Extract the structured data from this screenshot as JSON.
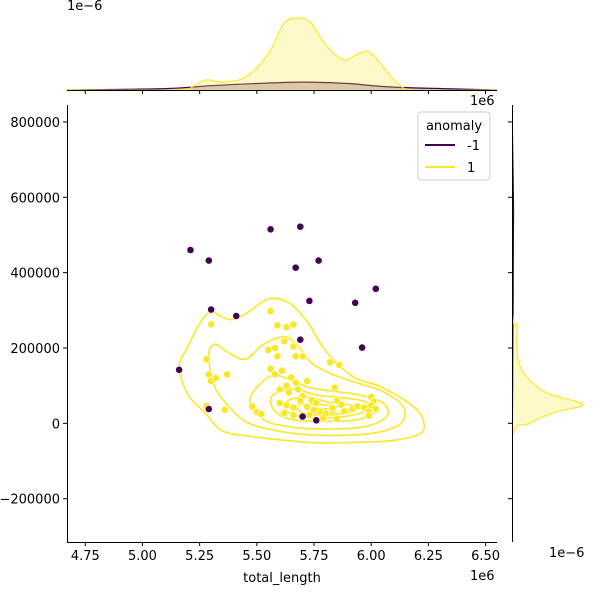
{
  "chart_data": {
    "type": "scatter",
    "xlabel": "total_length",
    "ylabel": "",
    "x_offset_label": "1e6",
    "top_marginal_offset_label": "1e−6",
    "top_marginal_corner_label": "1e6",
    "right_marginal_offset_label": "1e−6",
    "xlim": [
      4.67,
      6.55
    ],
    "ylim": [
      -315000,
      845000
    ],
    "x_ticks": [
      4.75,
      5.0,
      5.25,
      5.5,
      5.75,
      6.0,
      6.25,
      6.5
    ],
    "x_tick_labels": [
      "4.75",
      "5.00",
      "5.25",
      "5.50",
      "5.75",
      "6.00",
      "6.25",
      "6.50"
    ],
    "y_ticks": [
      -200000,
      0,
      200000,
      400000,
      600000,
      800000
    ],
    "y_tick_labels": [
      "−200000",
      "0",
      "200000",
      "400000",
      "600000",
      "800000"
    ],
    "grid": false,
    "legend": {
      "title": "anomaly",
      "placement": "top-right",
      "entries": [
        {
          "label": "-1",
          "color": "#440154"
        },
        {
          "label": "1",
          "color": "#fde725"
        }
      ]
    },
    "series": [
      {
        "name": "-1",
        "color": "#440154",
        "points": [
          [
            5.21,
            460000
          ],
          [
            5.29,
            432000
          ],
          [
            5.3,
            302000
          ],
          [
            5.29,
            38000
          ],
          [
            5.16,
            142000
          ],
          [
            5.41,
            285000
          ],
          [
            5.56,
            515000
          ],
          [
            5.69,
            522000
          ],
          [
            5.67,
            413000
          ],
          [
            5.77,
            432000
          ],
          [
            5.73,
            325000
          ],
          [
            5.69,
            222000
          ],
          [
            5.93,
            320000
          ],
          [
            6.02,
            357000
          ],
          [
            5.96,
            201000
          ],
          [
            5.76,
            8000
          ],
          [
            5.7,
            18000
          ]
        ]
      },
      {
        "name": "1",
        "color": "#fde725",
        "points": [
          [
            5.3,
            263000
          ],
          [
            5.28,
            170000
          ],
          [
            5.29,
            130000
          ],
          [
            5.3,
            112000
          ],
          [
            5.32,
            120000
          ],
          [
            5.37,
            130000
          ],
          [
            5.28,
            46000
          ],
          [
            5.36,
            36000
          ],
          [
            5.48,
            45000
          ],
          [
            5.5,
            30000
          ],
          [
            5.52,
            25000
          ],
          [
            5.56,
            298000
          ],
          [
            5.59,
            260000
          ],
          [
            5.63,
            255000
          ],
          [
            5.66,
            262000
          ],
          [
            5.62,
            218000
          ],
          [
            5.66,
            204000
          ],
          [
            5.55,
            195000
          ],
          [
            5.58,
            200000
          ],
          [
            5.59,
            178000
          ],
          [
            5.67,
            178000
          ],
          [
            5.7,
            178000
          ],
          [
            5.56,
            145000
          ],
          [
            5.58,
            130000
          ],
          [
            5.61,
            140000
          ],
          [
            5.65,
            122000
          ],
          [
            5.67,
            108000
          ],
          [
            5.63,
            100000
          ],
          [
            5.6,
            90000
          ],
          [
            5.64,
            82000
          ],
          [
            5.68,
            90000
          ],
          [
            5.72,
            112000
          ],
          [
            5.7,
            72000
          ],
          [
            5.74,
            62000
          ],
          [
            5.76,
            54000
          ],
          [
            5.72,
            44000
          ],
          [
            5.75,
            36000
          ],
          [
            5.78,
            30000
          ],
          [
            5.8,
            26000
          ],
          [
            5.6,
            54000
          ],
          [
            5.63,
            48000
          ],
          [
            5.66,
            42000
          ],
          [
            5.62,
            28000
          ],
          [
            5.66,
            22000
          ],
          [
            5.82,
            162000
          ],
          [
            5.86,
            155000
          ],
          [
            5.84,
            95000
          ],
          [
            5.85,
            60000
          ],
          [
            5.87,
            50000
          ],
          [
            5.83,
            40000
          ],
          [
            5.88,
            32000
          ],
          [
            5.92,
            38000
          ],
          [
            5.94,
            45000
          ],
          [
            5.97,
            42000
          ],
          [
            5.99,
            32000
          ],
          [
            6.0,
            70000
          ],
          [
            6.01,
            58000
          ],
          [
            6.0,
            48000
          ],
          [
            6.02,
            38000
          ],
          [
            5.99,
            20000
          ],
          [
            5.85,
            12000
          ],
          [
            5.79,
            14000
          ],
          [
            5.73,
            22000
          ],
          [
            5.69,
            60000
          ]
        ]
      }
    ],
    "top_marginal": {
      "type": "area",
      "series": [
        {
          "name": "-1",
          "color": "#440154",
          "x": [
            4.67,
            5.1,
            5.3,
            5.5,
            5.7,
            5.9,
            6.1,
            6.55
          ],
          "density": [
            0.0,
            0.02,
            0.06,
            0.09,
            0.11,
            0.09,
            0.04,
            0.0
          ]
        },
        {
          "name": "1",
          "color": "#fde725",
          "x": [
            4.67,
            5.15,
            5.22,
            5.28,
            5.35,
            5.45,
            5.55,
            5.62,
            5.69,
            5.74,
            5.8,
            5.88,
            5.94,
            5.99,
            6.04,
            6.12,
            6.2,
            6.55
          ],
          "density": [
            0.0,
            0.0,
            0.05,
            0.14,
            0.11,
            0.18,
            0.5,
            0.93,
            1.0,
            0.92,
            0.63,
            0.42,
            0.5,
            0.53,
            0.37,
            0.08,
            0.0,
            0.0
          ]
        }
      ]
    },
    "right_marginal": {
      "type": "area",
      "series": [
        {
          "name": "-1",
          "color": "#440154",
          "y": [
            -315000,
            -100000,
            100000,
            300000,
            500000,
            600000,
            845000
          ],
          "density": [
            0.0,
            0.0,
            0.01,
            0.015,
            0.02,
            0.02,
            0.0
          ]
        },
        {
          "name": "1",
          "color": "#fde725",
          "y": [
            -315000,
            -40000,
            0,
            30000,
            50000,
            80000,
            120000,
            160000,
            200000,
            260000,
            320000,
            845000
          ],
          "density": [
            0.0,
            0.0,
            0.25,
            0.62,
            1.0,
            0.5,
            0.22,
            0.1,
            0.07,
            0.07,
            0.0,
            0.0
          ]
        }
      ]
    },
    "contours": {
      "series": "1",
      "color": "#fde725",
      "levels": [
        [
          [
            5.16,
            150000
          ],
          [
            5.2,
            205000
          ],
          [
            5.25,
            265000
          ],
          [
            5.3,
            295000
          ],
          [
            5.38,
            275000
          ],
          [
            5.45,
            290000
          ],
          [
            5.55,
            330000
          ],
          [
            5.64,
            320000
          ],
          [
            5.72,
            270000
          ],
          [
            5.78,
            210000
          ],
          [
            5.84,
            165000
          ],
          [
            5.93,
            120000
          ],
          [
            6.03,
            100000
          ],
          [
            6.15,
            60000
          ],
          [
            6.22,
            20000
          ],
          [
            6.22,
            -25000
          ],
          [
            6.1,
            -45000
          ],
          [
            5.95,
            -50000
          ],
          [
            5.78,
            -52000
          ],
          [
            5.62,
            -45000
          ],
          [
            5.48,
            -35000
          ],
          [
            5.35,
            -20000
          ],
          [
            5.27,
            30000
          ],
          [
            5.2,
            75000
          ],
          [
            5.16,
            150000
          ]
        ],
        [
          [
            5.29,
            185000
          ],
          [
            5.32,
            210000
          ],
          [
            5.37,
            190000
          ],
          [
            5.45,
            170000
          ],
          [
            5.53,
            210000
          ],
          [
            5.62,
            230000
          ],
          [
            5.68,
            205000
          ],
          [
            5.74,
            160000
          ],
          [
            5.83,
            130000
          ],
          [
            5.95,
            105000
          ],
          [
            6.05,
            85000
          ],
          [
            6.14,
            45000
          ],
          [
            6.13,
            0
          ],
          [
            6.02,
            -25000
          ],
          [
            5.85,
            -32000
          ],
          [
            5.68,
            -28000
          ],
          [
            5.55,
            -15000
          ],
          [
            5.45,
            5000
          ],
          [
            5.37,
            50000
          ],
          [
            5.31,
            105000
          ],
          [
            5.29,
            185000
          ]
        ],
        [
          [
            5.47,
            65000
          ],
          [
            5.56,
            125000
          ],
          [
            5.65,
            115000
          ],
          [
            5.73,
            95000
          ],
          [
            5.84,
            85000
          ],
          [
            5.95,
            75000
          ],
          [
            6.05,
            55000
          ],
          [
            6.07,
            20000
          ],
          [
            5.98,
            -8000
          ],
          [
            5.82,
            -15000
          ],
          [
            5.65,
            -10000
          ],
          [
            5.53,
            10000
          ],
          [
            5.47,
            65000
          ]
        ],
        [
          [
            5.57,
            75000
          ],
          [
            5.66,
            92000
          ],
          [
            5.76,
            75000
          ],
          [
            5.87,
            68000
          ],
          [
            5.97,
            58000
          ],
          [
            6.02,
            32000
          ],
          [
            5.94,
            10000
          ],
          [
            5.78,
            5000
          ],
          [
            5.64,
            12000
          ],
          [
            5.57,
            40000
          ],
          [
            5.57,
            75000
          ]
        ],
        [
          [
            5.63,
            58000
          ],
          [
            5.72,
            70000
          ],
          [
            5.82,
            55000
          ],
          [
            5.92,
            48000
          ],
          [
            5.97,
            32000
          ],
          [
            5.88,
            18000
          ],
          [
            5.74,
            15000
          ],
          [
            5.64,
            28000
          ],
          [
            5.63,
            58000
          ]
        ],
        [
          [
            5.68,
            48000
          ],
          [
            5.78,
            50000
          ],
          [
            5.87,
            42000
          ],
          [
            5.91,
            30000
          ],
          [
            5.8,
            22000
          ],
          [
            5.7,
            28000
          ],
          [
            5.68,
            48000
          ]
        ],
        [
          [
            5.73,
            38000
          ],
          [
            5.81,
            38000
          ],
          [
            5.84,
            30000
          ],
          [
            5.76,
            26000
          ],
          [
            5.73,
            38000
          ]
        ]
      ]
    }
  }
}
